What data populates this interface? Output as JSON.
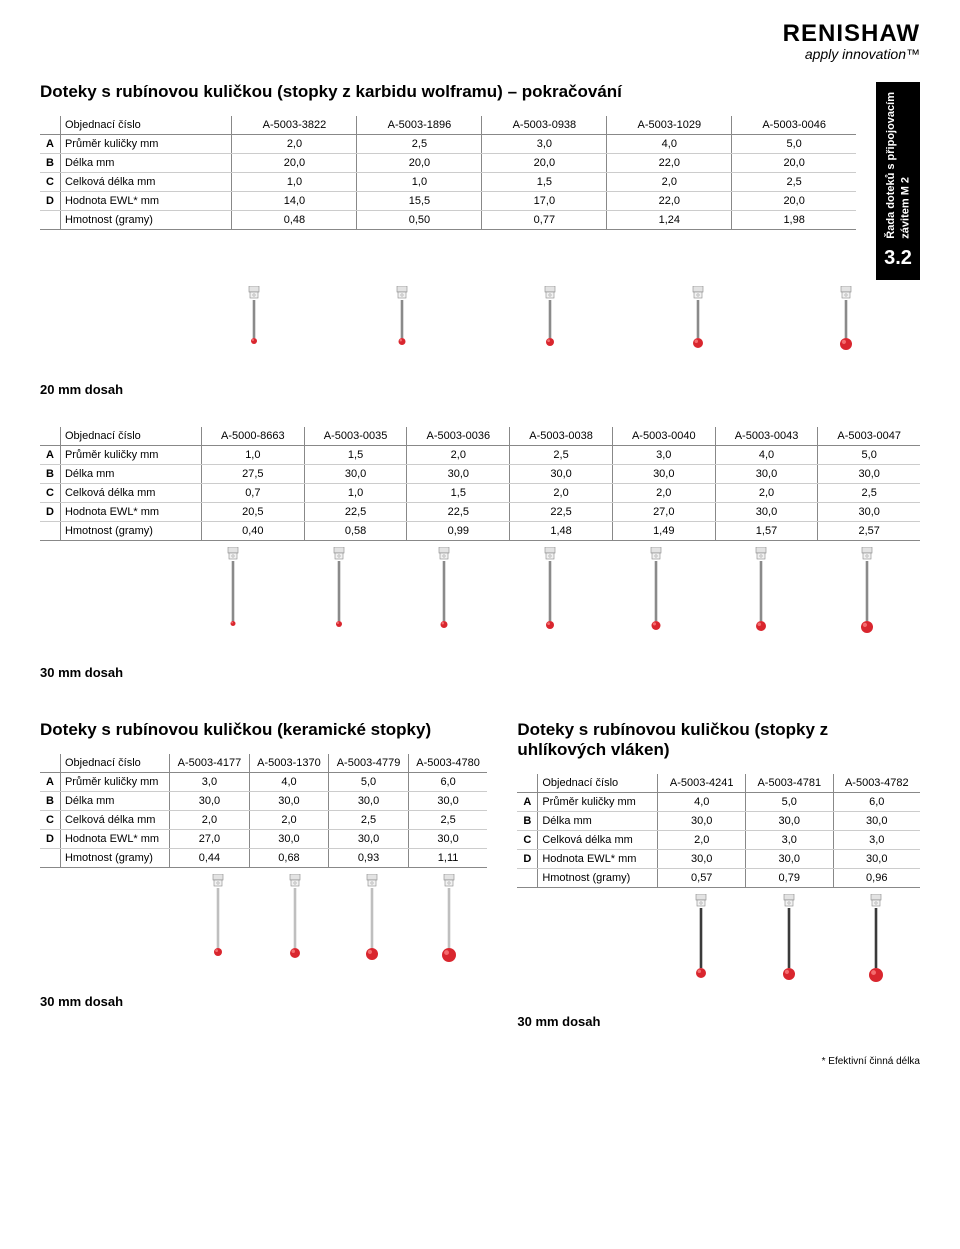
{
  "logo": {
    "name": "RENISHAW",
    "tagline": "apply innovation™"
  },
  "side_tab": {
    "line1": "Řada doteků s připojovacím",
    "line2": "závitem M 2",
    "section": "3.2",
    "bg": "#000000",
    "fg": "#ffffff"
  },
  "footnote": "* Efektivní činná délka",
  "colors": {
    "ruby": "#d9262e",
    "stem_gray": "#bfbfbf",
    "stem_dark": "#8a8a8a",
    "carbon": "#3a3a3a"
  },
  "sec1": {
    "title": "Doteky s rubínovou kuličkou (stopky z karbidu wolframu) – pokračování",
    "order_label": "Objednací číslo",
    "order_codes": [
      "A-5003-3822",
      "A-5003-1896",
      "A-5003-0938",
      "A-5003-1029",
      "A-5003-0046"
    ],
    "rows": [
      {
        "l": "A",
        "label": "Průměr kuličky mm",
        "v": [
          "2,0",
          "2,5",
          "3,0",
          "4,0",
          "5,0"
        ]
      },
      {
        "l": "B",
        "label": "Délka mm",
        "v": [
          "20,0",
          "20,0",
          "20,0",
          "22,0",
          "20,0"
        ]
      },
      {
        "l": "C",
        "label": "Celková délka mm",
        "v": [
          "1,0",
          "1,0",
          "1,5",
          "2,0",
          "2,5"
        ]
      },
      {
        "l": "D",
        "label": "Hodnota EWL* mm",
        "v": [
          "14,0",
          "15,5",
          "17,0",
          "22,0",
          "20,0"
        ]
      },
      {
        "l": "",
        "label": "Hmotnost (gramy)",
        "v": [
          "0,48",
          "0,50",
          "0,77",
          "1,24",
          "1,98"
        ]
      }
    ],
    "reach": "20 mm dosah",
    "ball_sizes": [
      3,
      3.5,
      4,
      5,
      6
    ],
    "stem_len": 38
  },
  "sec2": {
    "order_label": "Objednací číslo",
    "order_codes": [
      "A-5000-8663",
      "A-5003-0035",
      "A-5003-0036",
      "A-5003-0038",
      "A-5003-0040",
      "A-5003-0043",
      "A-5003-0047"
    ],
    "rows": [
      {
        "l": "A",
        "label": "Průměr kuličky mm",
        "v": [
          "1,0",
          "1,5",
          "2,0",
          "2,5",
          "3,0",
          "4,0",
          "5,0"
        ]
      },
      {
        "l": "B",
        "label": "Délka mm",
        "v": [
          "27,5",
          "30,0",
          "30,0",
          "30,0",
          "30,0",
          "30,0",
          "30,0"
        ]
      },
      {
        "l": "C",
        "label": "Celková délka mm",
        "v": [
          "0,7",
          "1,0",
          "1,5",
          "2,0",
          "2,0",
          "2,0",
          "2,5"
        ]
      },
      {
        "l": "D",
        "label": "Hodnota EWL* mm",
        "v": [
          "20,5",
          "22,5",
          "22,5",
          "22,5",
          "27,0",
          "30,0",
          "30,0"
        ]
      },
      {
        "l": "",
        "label": "Hmotnost (gramy)",
        "v": [
          "0,40",
          "0,58",
          "0,99",
          "1,48",
          "1,49",
          "1,57",
          "2,57"
        ]
      }
    ],
    "reach": "30 mm dosah",
    "ball_sizes": [
      2.5,
      3,
      3.5,
      4,
      4.5,
      5,
      6
    ],
    "stem_len": 60
  },
  "sec3": {
    "title": "Doteky s rubínovou kuličkou (keramické stopky)",
    "order_label": "Objednací číslo",
    "order_codes": [
      "A-5003-4177",
      "A-5003-1370",
      "A-5003-4779",
      "A-5003-4780"
    ],
    "rows": [
      {
        "l": "A",
        "label": "Průměr kuličky mm",
        "v": [
          "3,0",
          "4,0",
          "5,0",
          "6,0"
        ]
      },
      {
        "l": "B",
        "label": "Délka mm",
        "v": [
          "30,0",
          "30,0",
          "30,0",
          "30,0"
        ]
      },
      {
        "l": "C",
        "label": "Celková délka mm",
        "v": [
          "2,0",
          "2,0",
          "2,5",
          "2,5"
        ]
      },
      {
        "l": "D",
        "label": "Hodnota EWL* mm",
        "v": [
          "27,0",
          "30,0",
          "30,0",
          "30,0"
        ]
      },
      {
        "l": "",
        "label": "Hmotnost (gramy)",
        "v": [
          "0,44",
          "0,68",
          "0,93",
          "1,11"
        ]
      }
    ],
    "reach": "30 mm dosah",
    "ball_sizes": [
      4,
      5,
      6,
      7
    ],
    "stem_len": 60,
    "stem_color_key": "stem_gray"
  },
  "sec4": {
    "title": "Doteky s rubínovou kuličkou (stopky z uhlíkových vláken)",
    "order_label": "Objednací číslo",
    "order_codes": [
      "A-5003-4241",
      "A-5003-4781",
      "A-5003-4782"
    ],
    "rows": [
      {
        "l": "A",
        "label": "Průměr kuličky mm",
        "v": [
          "4,0",
          "5,0",
          "6,0"
        ]
      },
      {
        "l": "B",
        "label": "Délka mm",
        "v": [
          "30,0",
          "30,0",
          "30,0"
        ]
      },
      {
        "l": "C",
        "label": "Celková délka mm",
        "v": [
          "2,0",
          "3,0",
          "3,0"
        ]
      },
      {
        "l": "D",
        "label": "Hodnota EWL* mm",
        "v": [
          "30,0",
          "30,0",
          "30,0"
        ]
      },
      {
        "l": "",
        "label": "Hmotnost (gramy)",
        "v": [
          "0,57",
          "0,79",
          "0,96"
        ]
      }
    ],
    "reach": "30 mm dosah",
    "ball_sizes": [
      5,
      6,
      7
    ],
    "stem_len": 60,
    "stem_color_key": "carbon"
  }
}
